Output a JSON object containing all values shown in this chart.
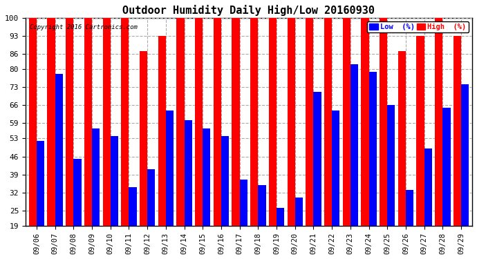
{
  "title": "Outdoor Humidity Daily High/Low 20160930",
  "copyright": "Copyright 2016 Cartronics.com",
  "dates": [
    "09/06",
    "09/07",
    "09/08",
    "09/09",
    "09/10",
    "09/11",
    "09/12",
    "09/13",
    "09/14",
    "09/15",
    "09/16",
    "09/17",
    "09/18",
    "09/19",
    "09/20",
    "09/21",
    "09/22",
    "09/23",
    "09/24",
    "09/25",
    "09/26",
    "09/27",
    "09/28",
    "09/29"
  ],
  "high": [
    100,
    100,
    100,
    100,
    100,
    100,
    87,
    93,
    100,
    100,
    100,
    100,
    100,
    100,
    100,
    100,
    100,
    100,
    100,
    100,
    87,
    93,
    100,
    93
  ],
  "low": [
    52,
    78,
    45,
    57,
    54,
    34,
    41,
    64,
    60,
    57,
    54,
    37,
    35,
    26,
    30,
    71,
    64,
    82,
    79,
    66,
    33,
    49,
    65,
    74
  ],
  "bg_color": "#ffffff",
  "bar_color_high": "#ff0000",
  "bar_color_low": "#0000ff",
  "grid_color": "#aaaaaa",
  "ylim_min": 19,
  "ylim_max": 100,
  "yticks": [
    19,
    25,
    32,
    39,
    46,
    53,
    59,
    66,
    73,
    80,
    86,
    93,
    100
  ],
  "legend_low_label": "Low  (%)",
  "legend_high_label": "High  (%)",
  "bar_width": 0.42,
  "fig_width": 6.9,
  "fig_height": 3.75,
  "dpi": 100
}
